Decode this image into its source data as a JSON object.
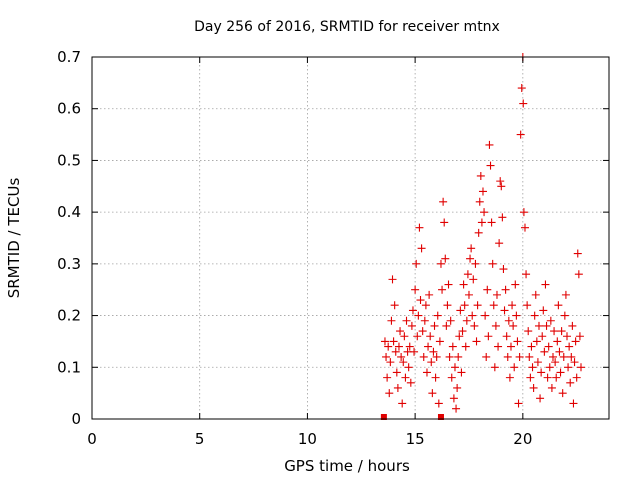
{
  "chart_data": {
    "type": "scatter",
    "title": "Day 256 of 2016, SRMTID for receiver mtnx",
    "xlabel": "GPS time / hours",
    "ylabel": "SRMTID / TECUs",
    "xlim": [
      0,
      24
    ],
    "ylim": [
      0,
      0.7
    ],
    "x_ticks": [
      0,
      5,
      10,
      15,
      20
    ],
    "y_ticks": [
      0,
      0.1,
      0.2,
      0.3,
      0.4,
      0.5,
      0.6,
      0.7
    ],
    "x_tick_labels": [
      "0",
      "5",
      "10",
      "15",
      "20"
    ],
    "y_tick_labels": [
      "0",
      "0.1",
      "0.2",
      "0.3",
      "0.4",
      "0.5",
      "0.6",
      "0.7"
    ],
    "grid": true,
    "marker": "plus",
    "color": "#e00000",
    "series": [
      {
        "values_are_approximate": true,
        "points": [
          [
            13.6,
            0.15
          ],
          [
            13.65,
            0.12
          ],
          [
            13.7,
            0.08
          ],
          [
            13.75,
            0.14
          ],
          [
            13.8,
            0.05
          ],
          [
            13.85,
            0.11
          ],
          [
            13.9,
            0.19
          ],
          [
            13.95,
            0.27
          ],
          [
            14.0,
            0.15
          ],
          [
            14.05,
            0.22
          ],
          [
            14.1,
            0.13
          ],
          [
            14.15,
            0.09
          ],
          [
            14.2,
            0.06
          ],
          [
            14.25,
            0.14
          ],
          [
            14.3,
            0.17
          ],
          [
            14.35,
            0.12
          ],
          [
            14.4,
            0.03
          ],
          [
            14.45,
            0.11
          ],
          [
            14.5,
            0.16
          ],
          [
            14.55,
            0.08
          ],
          [
            14.6,
            0.19
          ],
          [
            14.65,
            0.13
          ],
          [
            14.7,
            0.1
          ],
          [
            14.75,
            0.14
          ],
          [
            14.8,
            0.07
          ],
          [
            14.85,
            0.18
          ],
          [
            14.9,
            0.21
          ],
          [
            14.95,
            0.13
          ],
          [
            15.0,
            0.25
          ],
          [
            15.05,
            0.3
          ],
          [
            15.1,
            0.16
          ],
          [
            15.15,
            0.2
          ],
          [
            15.2,
            0.37
          ],
          [
            15.25,
            0.23
          ],
          [
            15.3,
            0.33
          ],
          [
            15.35,
            0.17
          ],
          [
            15.4,
            0.12
          ],
          [
            15.45,
            0.19
          ],
          [
            15.5,
            0.22
          ],
          [
            15.55,
            0.09
          ],
          [
            15.6,
            0.14
          ],
          [
            15.65,
            0.24
          ],
          [
            15.7,
            0.16
          ],
          [
            15.75,
            0.11
          ],
          [
            15.8,
            0.05
          ],
          [
            15.85,
            0.13
          ],
          [
            15.9,
            0.18
          ],
          [
            15.95,
            0.08
          ],
          [
            16.0,
            0.12
          ],
          [
            16.05,
            0.2
          ],
          [
            16.1,
            0.03
          ],
          [
            16.15,
            0.15
          ],
          [
            16.2,
            0.3
          ],
          [
            16.25,
            0.25
          ],
          [
            16.3,
            0.42
          ],
          [
            16.35,
            0.38
          ],
          [
            16.4,
            0.31
          ],
          [
            16.45,
            0.18
          ],
          [
            16.5,
            0.22
          ],
          [
            16.55,
            0.26
          ],
          [
            16.6,
            0.12
          ],
          [
            16.65,
            0.19
          ],
          [
            16.7,
            0.08
          ],
          [
            16.75,
            0.14
          ],
          [
            16.8,
            0.04
          ],
          [
            16.85,
            0.1
          ],
          [
            16.9,
            0.02
          ],
          [
            16.95,
            0.06
          ],
          [
            17.0,
            0.12
          ],
          [
            17.05,
            0.16
          ],
          [
            17.1,
            0.21
          ],
          [
            17.15,
            0.09
          ],
          [
            17.2,
            0.17
          ],
          [
            17.25,
            0.26
          ],
          [
            17.3,
            0.22
          ],
          [
            17.35,
            0.14
          ],
          [
            17.4,
            0.19
          ],
          [
            17.45,
            0.28
          ],
          [
            17.5,
            0.24
          ],
          [
            17.55,
            0.31
          ],
          [
            17.6,
            0.33
          ],
          [
            17.65,
            0.2
          ],
          [
            17.7,
            0.27
          ],
          [
            17.75,
            0.18
          ],
          [
            17.8,
            0.3
          ],
          [
            17.85,
            0.15
          ],
          [
            17.9,
            0.22
          ],
          [
            17.95,
            0.36
          ],
          [
            18.0,
            0.42
          ],
          [
            18.05,
            0.47
          ],
          [
            18.1,
            0.38
          ],
          [
            18.15,
            0.44
          ],
          [
            18.2,
            0.4
          ],
          [
            18.25,
            0.2
          ],
          [
            18.3,
            0.12
          ],
          [
            18.35,
            0.25
          ],
          [
            18.4,
            0.16
          ],
          [
            18.45,
            0.53
          ],
          [
            18.5,
            0.49
          ],
          [
            18.55,
            0.38
          ],
          [
            18.6,
            0.3
          ],
          [
            18.65,
            0.22
          ],
          [
            18.7,
            0.1
          ],
          [
            18.75,
            0.18
          ],
          [
            18.8,
            0.24
          ],
          [
            18.85,
            0.14
          ],
          [
            18.9,
            0.34
          ],
          [
            18.95,
            0.46
          ],
          [
            19.0,
            0.45
          ],
          [
            19.05,
            0.39
          ],
          [
            19.1,
            0.29
          ],
          [
            19.15,
            0.21
          ],
          [
            19.2,
            0.25
          ],
          [
            19.25,
            0.16
          ],
          [
            19.3,
            0.12
          ],
          [
            19.35,
            0.19
          ],
          [
            19.4,
            0.08
          ],
          [
            19.45,
            0.14
          ],
          [
            19.5,
            0.22
          ],
          [
            19.55,
            0.18
          ],
          [
            19.6,
            0.1
          ],
          [
            19.65,
            0.26
          ],
          [
            19.7,
            0.2
          ],
          [
            19.75,
            0.15
          ],
          [
            19.8,
            0.03
          ],
          [
            19.85,
            0.12
          ],
          [
            19.9,
            0.55
          ],
          [
            19.95,
            0.64
          ],
          [
            20.0,
            0.7
          ],
          [
            20.02,
            0.61
          ],
          [
            20.05,
            0.4
          ],
          [
            20.1,
            0.37
          ],
          [
            20.15,
            0.28
          ],
          [
            20.2,
            0.22
          ],
          [
            20.25,
            0.17
          ],
          [
            20.3,
            0.12
          ],
          [
            20.35,
            0.08
          ],
          [
            20.4,
            0.14
          ],
          [
            20.45,
            0.1
          ],
          [
            20.5,
            0.06
          ],
          [
            20.55,
            0.2
          ],
          [
            20.6,
            0.24
          ],
          [
            20.65,
            0.15
          ],
          [
            20.7,
            0.11
          ],
          [
            20.75,
            0.18
          ],
          [
            20.8,
            0.04
          ],
          [
            20.85,
            0.09
          ],
          [
            20.9,
            0.16
          ],
          [
            20.95,
            0.21
          ],
          [
            21.0,
            0.13
          ],
          [
            21.05,
            0.26
          ],
          [
            21.1,
            0.18
          ],
          [
            21.15,
            0.08
          ],
          [
            21.2,
            0.14
          ],
          [
            21.25,
            0.1
          ],
          [
            21.3,
            0.19
          ],
          [
            21.35,
            0.06
          ],
          [
            21.4,
            0.12
          ],
          [
            21.45,
            0.17
          ],
          [
            21.5,
            0.11
          ],
          [
            21.55,
            0.08
          ],
          [
            21.6,
            0.15
          ],
          [
            21.65,
            0.22
          ],
          [
            21.7,
            0.13
          ],
          [
            21.75,
            0.09
          ],
          [
            21.8,
            0.17
          ],
          [
            21.85,
            0.05
          ],
          [
            21.9,
            0.12
          ],
          [
            21.95,
            0.2
          ],
          [
            22.0,
            0.24
          ],
          [
            22.05,
            0.16
          ],
          [
            22.1,
            0.1
          ],
          [
            22.15,
            0.14
          ],
          [
            22.2,
            0.07
          ],
          [
            22.25,
            0.12
          ],
          [
            22.3,
            0.18
          ],
          [
            22.35,
            0.03
          ],
          [
            22.4,
            0.11
          ],
          [
            22.45,
            0.15
          ],
          [
            22.5,
            0.08
          ],
          [
            22.55,
            0.32
          ],
          [
            22.6,
            0.28
          ],
          [
            22.65,
            0.16
          ],
          [
            22.7,
            0.1
          ]
        ]
      }
    ],
    "gap_markers_x": [
      13.55,
      16.2
    ]
  }
}
